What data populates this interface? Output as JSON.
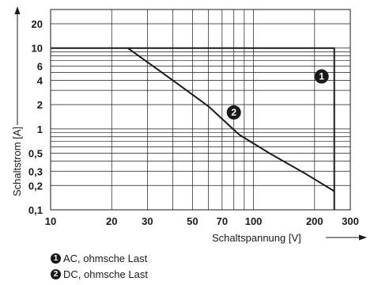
{
  "chart_data": {
    "type": "line",
    "xlabel": "Schaltspannung [V]",
    "ylabel": "Schaltstrom [A]",
    "x_scale": "log",
    "y_scale": "log",
    "xlim": [
      10,
      300
    ],
    "ylim": [
      0.1,
      30
    ],
    "x_ticks": [
      10,
      20,
      30,
      50,
      70,
      100,
      200,
      300
    ],
    "x_tick_labels": [
      "10",
      "20",
      "30",
      "50",
      "70",
      "100",
      "200",
      "300"
    ],
    "y_ticks": [
      0.1,
      0.2,
      0.3,
      0.5,
      1,
      2,
      4,
      6,
      10,
      20
    ],
    "y_tick_labels": [
      "0,1",
      "0,2",
      "0,3",
      "0,5",
      "1",
      "2",
      "4",
      "6",
      "10",
      "20"
    ],
    "grid": true,
    "series": [
      {
        "name": "AC, ohmsche Last",
        "marker": "1",
        "points": [
          [
            10,
            10
          ],
          [
            250,
            10
          ],
          [
            250,
            0.1
          ]
        ]
      },
      {
        "name": "DC, ohmsche Last",
        "marker": "2",
        "points": [
          [
            24,
            10
          ],
          [
            40,
            4
          ],
          [
            60,
            1.9
          ],
          [
            85,
            0.85
          ],
          [
            120,
            0.5
          ],
          [
            180,
            0.28
          ],
          [
            250,
            0.17
          ]
        ]
      }
    ]
  },
  "legend": [
    {
      "marker": "1",
      "text": "AC, ohmsche Last"
    },
    {
      "marker": "2",
      "text": "DC, ohmsche Last"
    }
  ]
}
